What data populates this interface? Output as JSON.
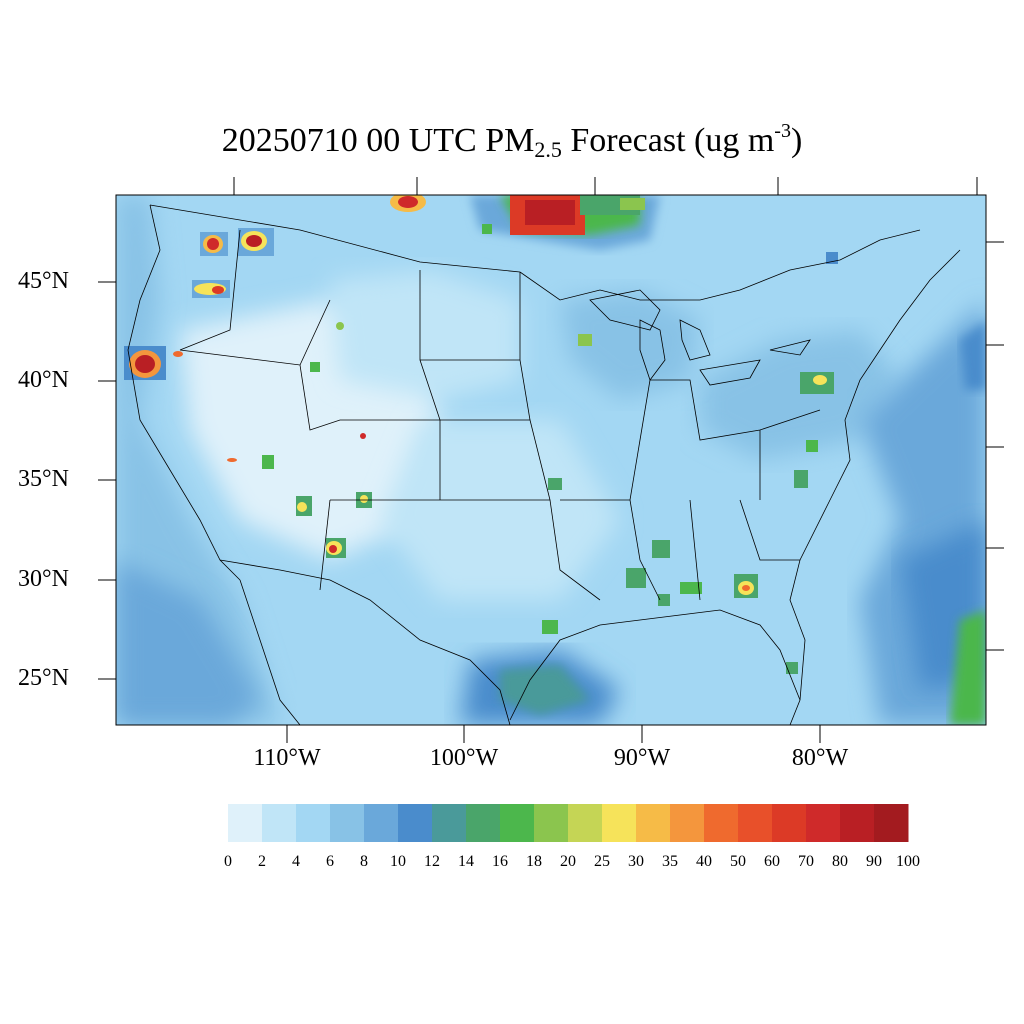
{
  "title": {
    "main": "20250710 00 UTC PM",
    "sub": "2.5",
    "rest": " Forecast (ug m",
    "sup": "-3",
    "close": ")"
  },
  "map": {
    "region": "Contiguous United States",
    "variable": "PM2.5",
    "latitude_labels": [
      "45°N",
      "40°N",
      "35°N",
      "30°N",
      "25°N"
    ],
    "longitude_labels": [
      "110°W",
      "100°W",
      "90°W",
      "80°W"
    ],
    "hotspots": [
      {
        "name": "northern-california",
        "level": 90
      },
      {
        "name": "idaho-montana-north",
        "level": 90
      },
      {
        "name": "idaho-central",
        "level": 60
      },
      {
        "name": "oregon-central",
        "level": 60
      },
      {
        "name": "saskatchewan-border",
        "level": 100
      },
      {
        "name": "manitoba-ontario",
        "level": 100
      },
      {
        "name": "new-mexico-south",
        "level": 70
      },
      {
        "name": "georgia-south",
        "level": 50
      },
      {
        "name": "new-jersey",
        "level": 25
      }
    ]
  },
  "colorbar": {
    "labels": [
      "0",
      "2",
      "4",
      "6",
      "8",
      "10",
      "12",
      "14",
      "16",
      "18",
      "20",
      "25",
      "30",
      "35",
      "40",
      "50",
      "60",
      "70",
      "80",
      "90",
      "100"
    ],
    "colors": [
      "#dff1fa",
      "#c0e5f7",
      "#a3d7f3",
      "#88c2e6",
      "#6aa8da",
      "#4a8ccc",
      "#4a9a9a",
      "#4aa56a",
      "#4cb74c",
      "#8bc54e",
      "#c5d555",
      "#f6e35a",
      "#f6bb47",
      "#f4963d",
      "#ef6a2e",
      "#e8502a",
      "#dc3a26",
      "#cf2a2a",
      "#b91f24",
      "#a31b1f"
    ],
    "unit": "ug m-3"
  }
}
